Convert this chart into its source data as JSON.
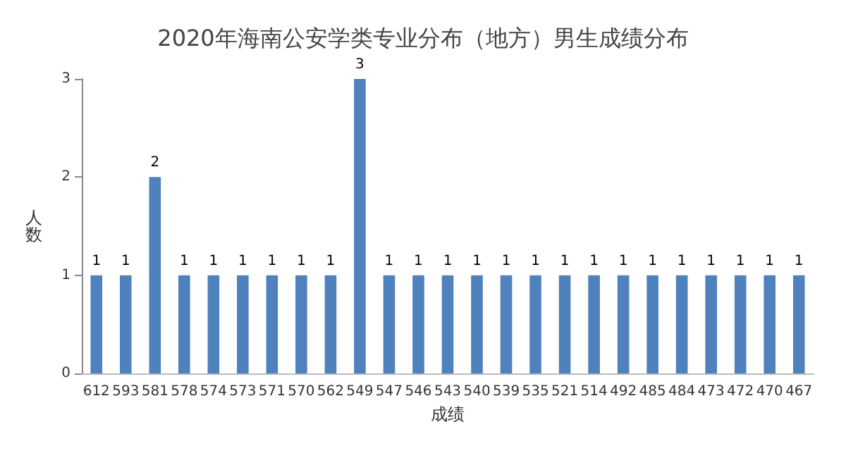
{
  "chart_data": {
    "type": "bar",
    "title": "2020年海南公安学类专业分布（地方）男生成绩分布",
    "xlabel": "成绩",
    "ylabel": "人数",
    "categories": [
      "612",
      "593",
      "581",
      "578",
      "574",
      "573",
      "571",
      "570",
      "562",
      "549",
      "547",
      "546",
      "543",
      "540",
      "539",
      "535",
      "521",
      "514",
      "492",
      "485",
      "484",
      "473",
      "472",
      "470",
      "467"
    ],
    "values": [
      1,
      1,
      2,
      1,
      1,
      1,
      1,
      1,
      1,
      3,
      1,
      1,
      1,
      1,
      1,
      1,
      1,
      1,
      1,
      1,
      1,
      1,
      1,
      1,
      1
    ],
    "color": "#4f81bd",
    "ylim": [
      0,
      3
    ],
    "yticks": [
      0,
      1,
      2,
      3
    ],
    "grid": false,
    "data_labels": true
  }
}
